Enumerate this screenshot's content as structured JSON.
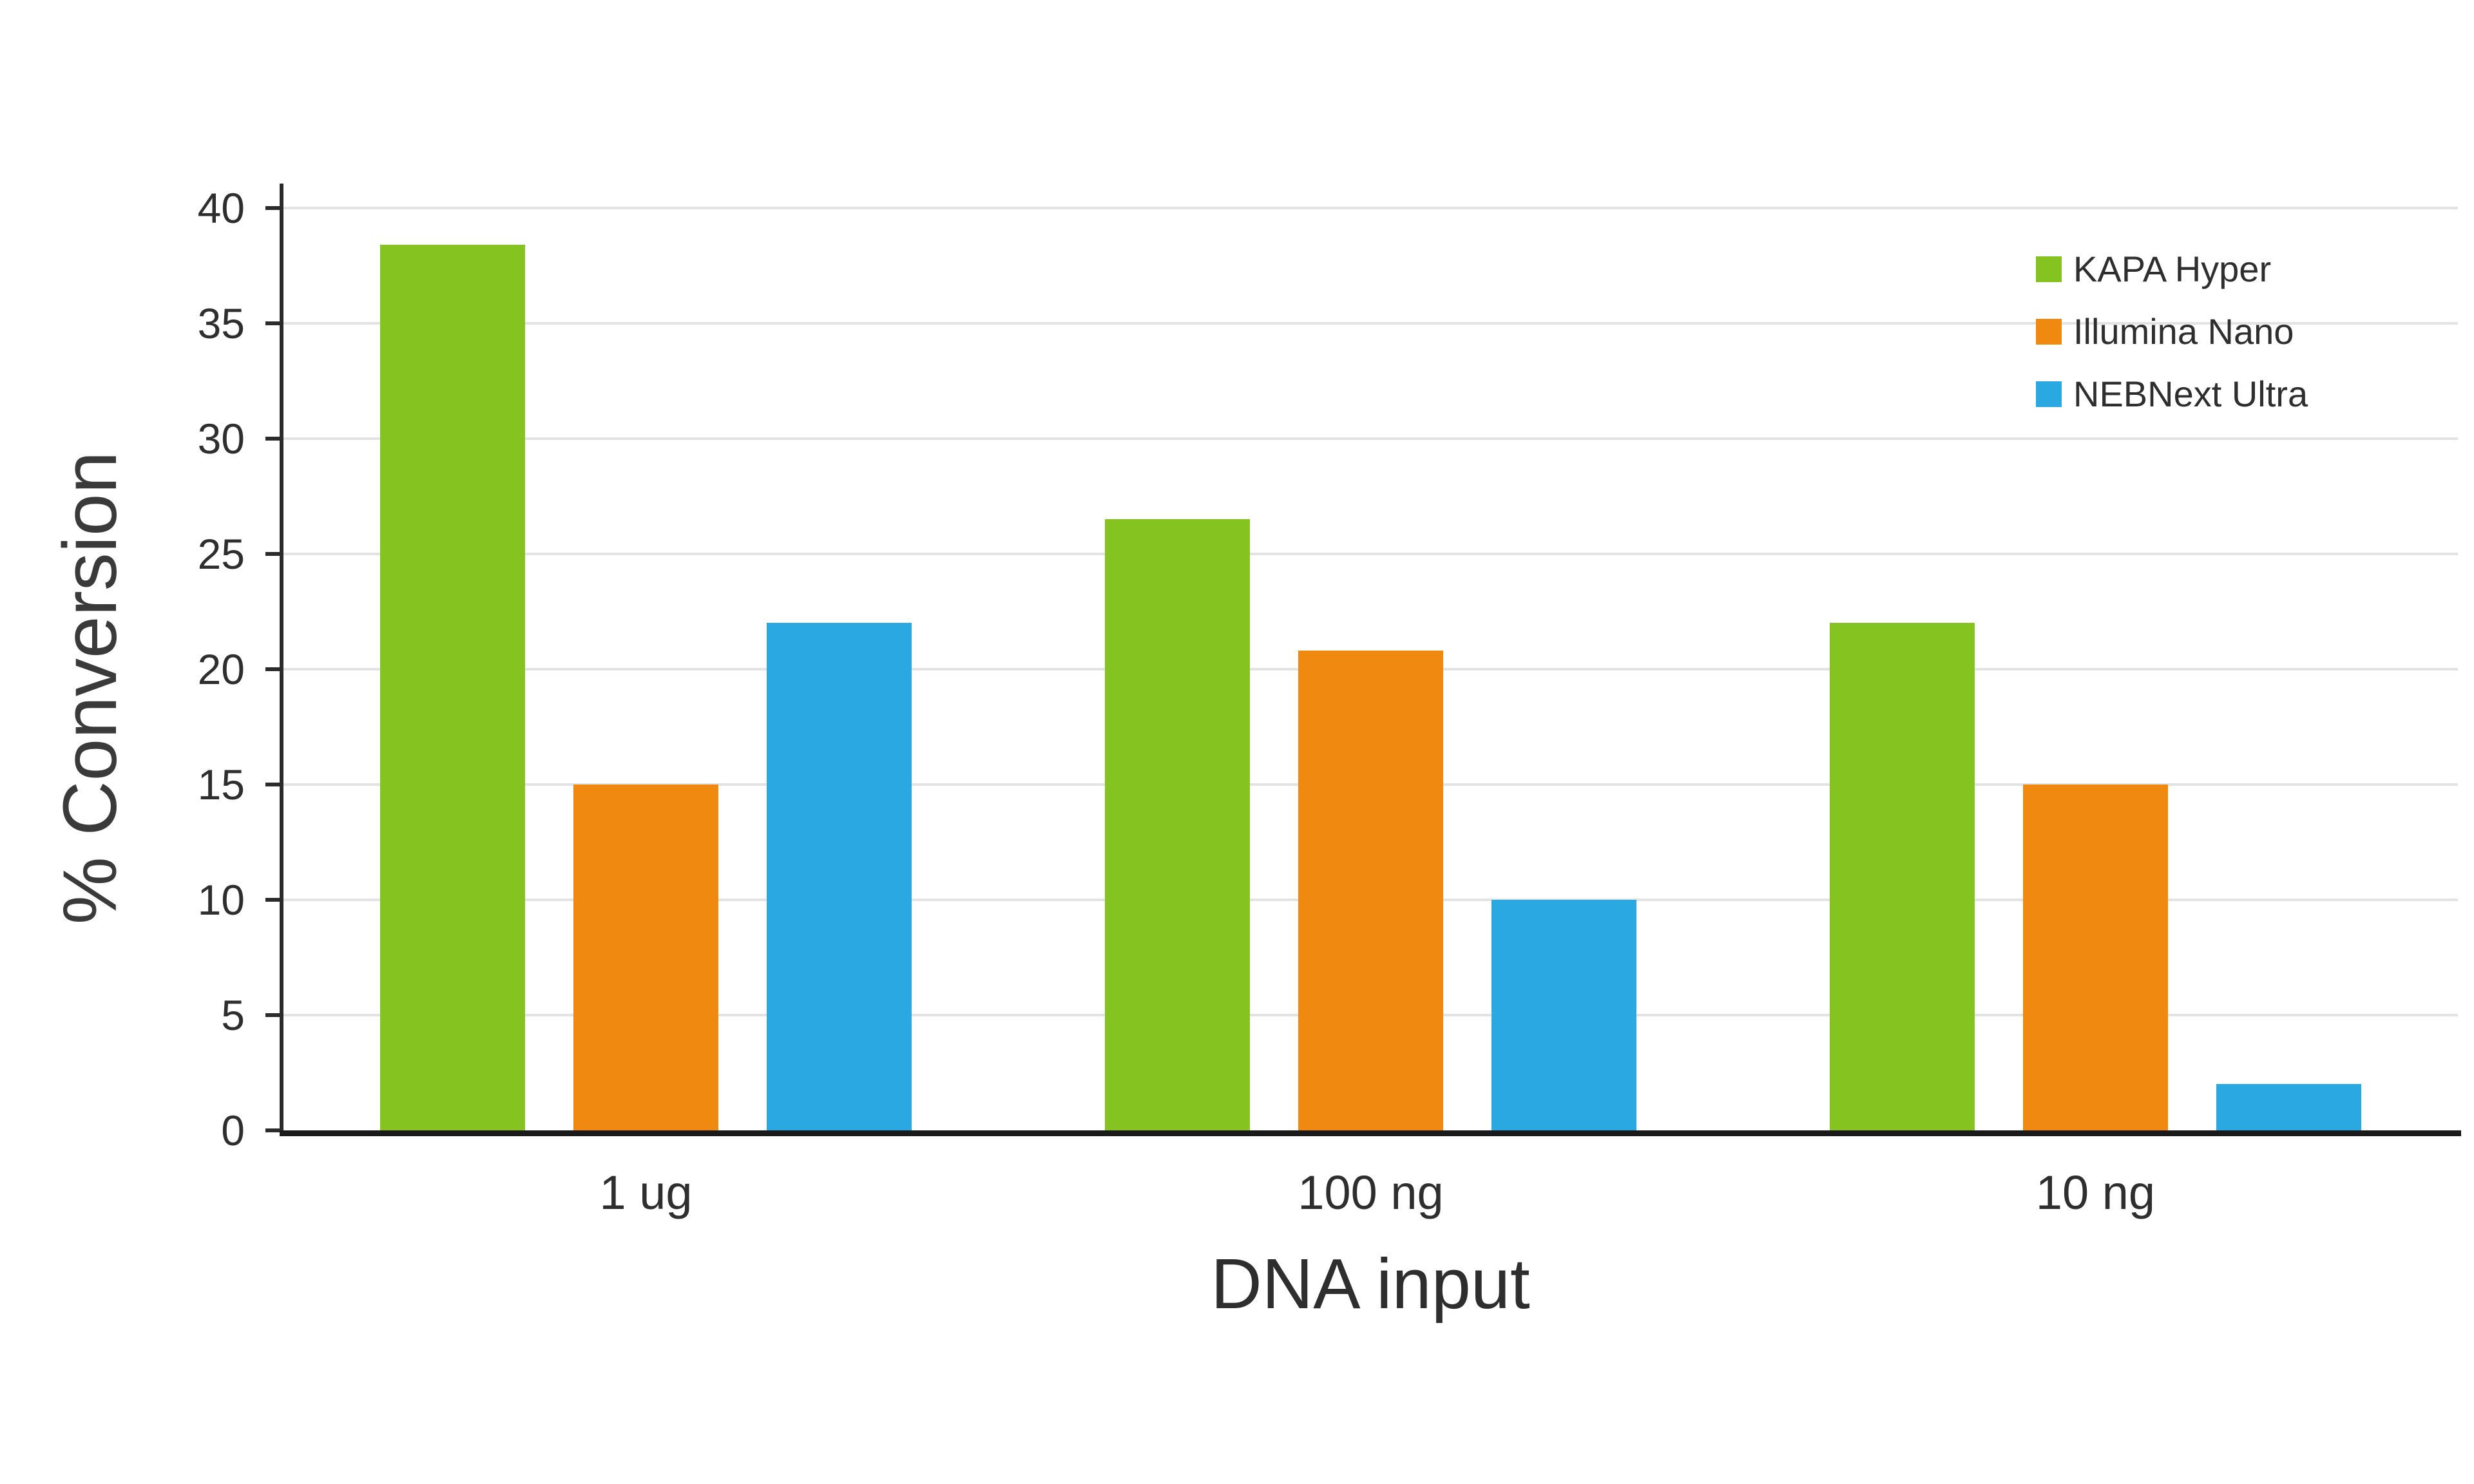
{
  "chart_data": {
    "type": "bar",
    "categories": [
      "1 ug",
      "100 ng",
      "10 ng"
    ],
    "series": [
      {
        "name": "KAPA Hyper",
        "color": "#85C320",
        "values": [
          38.4,
          26.5,
          22.0
        ]
      },
      {
        "name": "Illumina Nano",
        "color": "#F0890F",
        "values": [
          15.0,
          20.8,
          15.0
        ]
      },
      {
        "name": "NEBNext Ultra",
        "color": "#29A8E1",
        "values": [
          22.0,
          10.0,
          2.0
        ]
      }
    ],
    "title": "",
    "xlabel": "DNA input",
    "ylabel": "% Conversion",
    "ylim": [
      0,
      40
    ],
    "ytick_step": 5,
    "grid": true,
    "legend_position": "top-right"
  }
}
